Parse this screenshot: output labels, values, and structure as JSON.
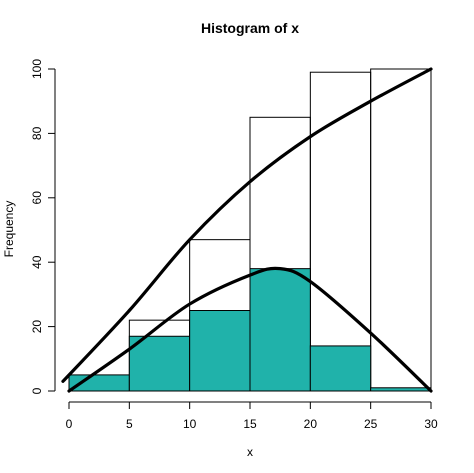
{
  "chart_data": {
    "type": "bar",
    "title": "Histogram of x",
    "xlabel": "x",
    "ylabel": "Frequency",
    "xlim": [
      0,
      30
    ],
    "ylim": [
      0,
      100
    ],
    "x_ticks": [
      "0",
      "5",
      "10",
      "15",
      "20",
      "25",
      "30"
    ],
    "y_ticks": [
      "0",
      "20",
      "40",
      "60",
      "80",
      "100"
    ],
    "bins": [
      [
        0,
        5
      ],
      [
        5,
        10
      ],
      [
        10,
        15
      ],
      [
        15,
        20
      ],
      [
        20,
        25
      ],
      [
        25,
        30
      ]
    ],
    "series": [
      {
        "values": [
          3,
          22,
          47,
          85,
          99,
          100
        ],
        "fill": "none"
      },
      {
        "values": [
          5,
          17,
          25,
          38,
          14,
          1
        ],
        "fill": "#20b2aa"
      }
    ],
    "curves": [
      {
        "points": [
          [
            -0.5,
            3
          ],
          [
            5,
            25
          ],
          [
            10,
            47
          ],
          [
            15,
            65
          ],
          [
            20,
            79
          ],
          [
            25,
            90
          ],
          [
            30,
            100
          ]
        ]
      },
      {
        "points": [
          [
            0,
            0
          ],
          [
            5,
            13
          ],
          [
            10,
            27
          ],
          [
            15,
            36
          ],
          [
            17.5,
            38
          ],
          [
            20,
            34
          ],
          [
            25,
            18
          ],
          [
            30,
            0
          ]
        ]
      }
    ],
    "baseline_color": "#cd5c5c",
    "grid": false
  }
}
